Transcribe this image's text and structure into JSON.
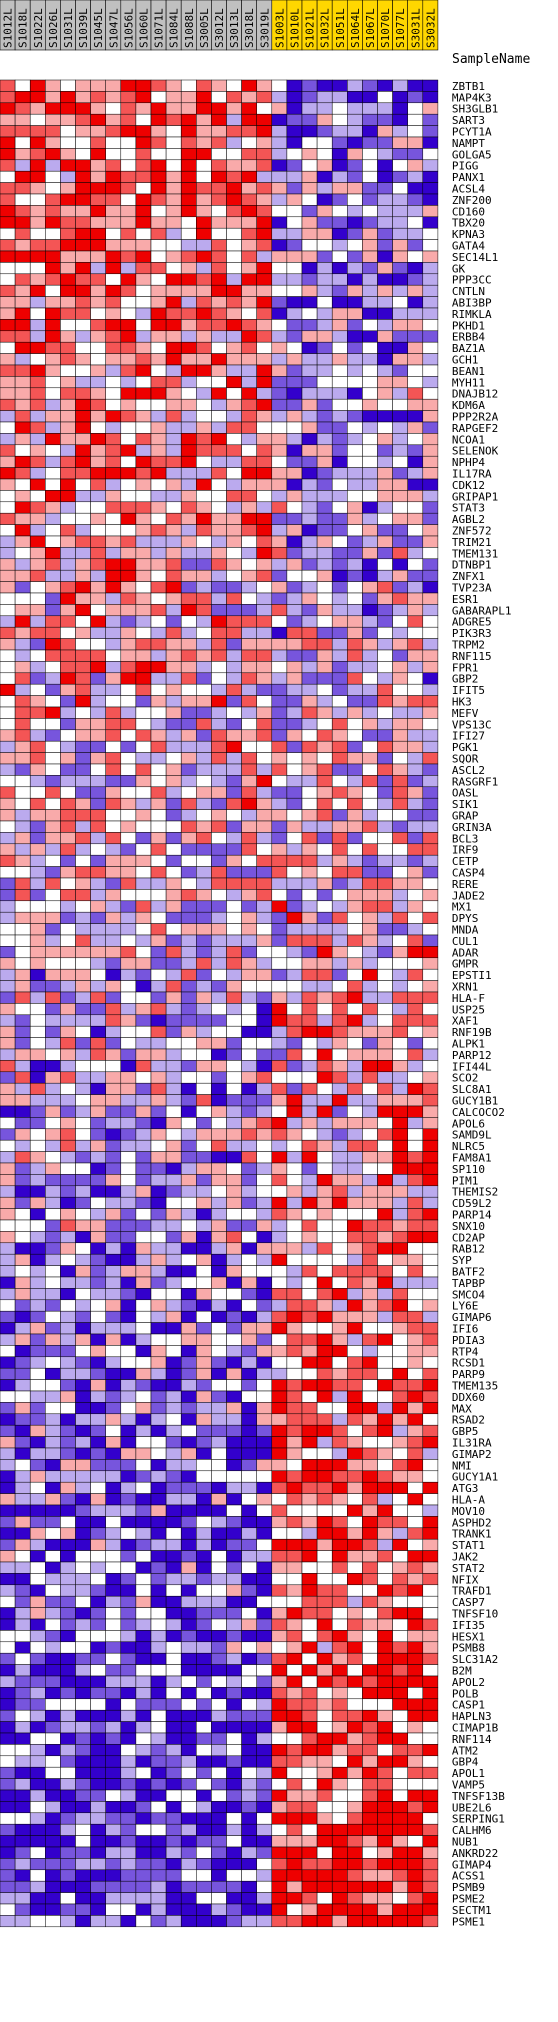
{
  "chart_data": {
    "type": "heatmap",
    "header_label": "SampleName",
    "colors": {
      "class_a_header": "#c0c0c0",
      "class_b_header": "#ffd700",
      "cell_border": "#000000",
      "low": "#3300cc",
      "high": "#ee0000"
    },
    "class_a_samples": [
      "S1012L",
      "S1018L",
      "S1022L",
      "S1026L",
      "S1031L",
      "S1039L",
      "S1045L",
      "S1047L",
      "S1056L",
      "S1060L",
      "S1071L",
      "S1084L",
      "S1088L",
      "S3005L",
      "S3012L",
      "S3013L",
      "S3018L",
      "S3019L"
    ],
    "class_b_samples": [
      "S1003L",
      "S1010L",
      "S1021L",
      "S1032L",
      "S1051L",
      "S1064L",
      "S1067L",
      "S1070L",
      "S1077L",
      "S3031L",
      "S3032L"
    ],
    "genes": [
      "ZBTB1",
      "MAP4K3",
      "SH3GLB1",
      "SART3",
      "PCYT1A",
      "NAMPT",
      "GOLGA5",
      "PIGG",
      "PANX1",
      "ACSL4",
      "ZNF200",
      "CD160",
      "TBX20",
      "KPNA3",
      "GATA4",
      "SEC14L1",
      "GK",
      "PPP3CC",
      "CNTLN",
      "ABI3BP",
      "RIMKLA",
      "PKHD1",
      "ERBB4",
      "BAZ1A",
      "GCH1",
      "BEAN1",
      "MYH11",
      "DNAJB12",
      "KDM6A",
      "PPP2R2A",
      "RAPGEF2",
      "NCOA1",
      "SELENOK",
      "NPHP4",
      "IL17RA",
      "CDK12",
      "GRIPAP1",
      "STAT3",
      "AGBL2",
      "ZNF572",
      "TRIM21",
      "TMEM131",
      "DTNBP1",
      "ZNFX1",
      "TVP23A",
      "ESR1",
      "GABARAPL1",
      "ADGRE5",
      "PIK3R3",
      "TRPM2",
      "RNF115",
      "FPR1",
      "GBP2",
      "IFIT5",
      "HK3",
      "MEFV",
      "VPS13C",
      "IFI27",
      "PGK1",
      "SQOR",
      "ASCL2",
      "RASGRF1",
      "OASL",
      "SIK1",
      "GRAP",
      "GRIN3A",
      "BCL3",
      "IRF9",
      "CETP",
      "CASP4",
      "RERE",
      "JADE2",
      "MX1",
      "DPYS",
      "MNDA",
      "CUL1",
      "ADAR",
      "GMPR",
      "EPSTI1",
      "XRN1",
      "HLA-F",
      "USP25",
      "XAF1",
      "RNF19B",
      "ALPK1",
      "PARP12",
      "IFI44L",
      "SCO2",
      "SLC8A1",
      "GUCY1B1",
      "CALCOCO2",
      "APOL6",
      "SAMD9L",
      "NLRC5",
      "FAM8A1",
      "SP110",
      "PIM1",
      "THEMIS2",
      "CD59L2",
      "PARP14",
      "SNX10",
      "CD2AP",
      "RAB12",
      "SYP",
      "BATF2",
      "TAPBP",
      "SMCO4",
      "LY6E",
      "GIMAP6",
      "IFI6",
      "PDIA3",
      "RTP4",
      "RCSD1",
      "PARP9",
      "TMEM135",
      "DDX60",
      "MAX",
      "RSAD2",
      "GBP5",
      "IL31RA",
      "GIMAP2",
      "NMI",
      "GUCY1A1",
      "ATG3",
      "HLA-A",
      "MOV10",
      "ASPHD2",
      "TRANK1",
      "STAT1",
      "JAK2",
      "STAT2",
      "NFIX",
      "TRAFD1",
      "CASP7",
      "TNFSF10",
      "IFI35",
      "HESX1",
      "PSMB8",
      "SLC31A2",
      "B2M",
      "APOL2",
      "POLB",
      "CASP1",
      "HAPLN3",
      "CIMAP1B",
      "RNF114",
      "ATM2",
      "GBP4",
      "APOL1",
      "VAMP5",
      "TNFSF13B",
      "UBE2L6",
      "SERPING1",
      "CALHM6",
      "NUB1",
      "ANKRD22",
      "GIMAP4",
      "ACSS1",
      "PSMB9",
      "PSME2",
      "SECTM1",
      "PSME1"
    ],
    "scale": "row-normalized expression, blue (low) to red (high)",
    "grid": true
  }
}
